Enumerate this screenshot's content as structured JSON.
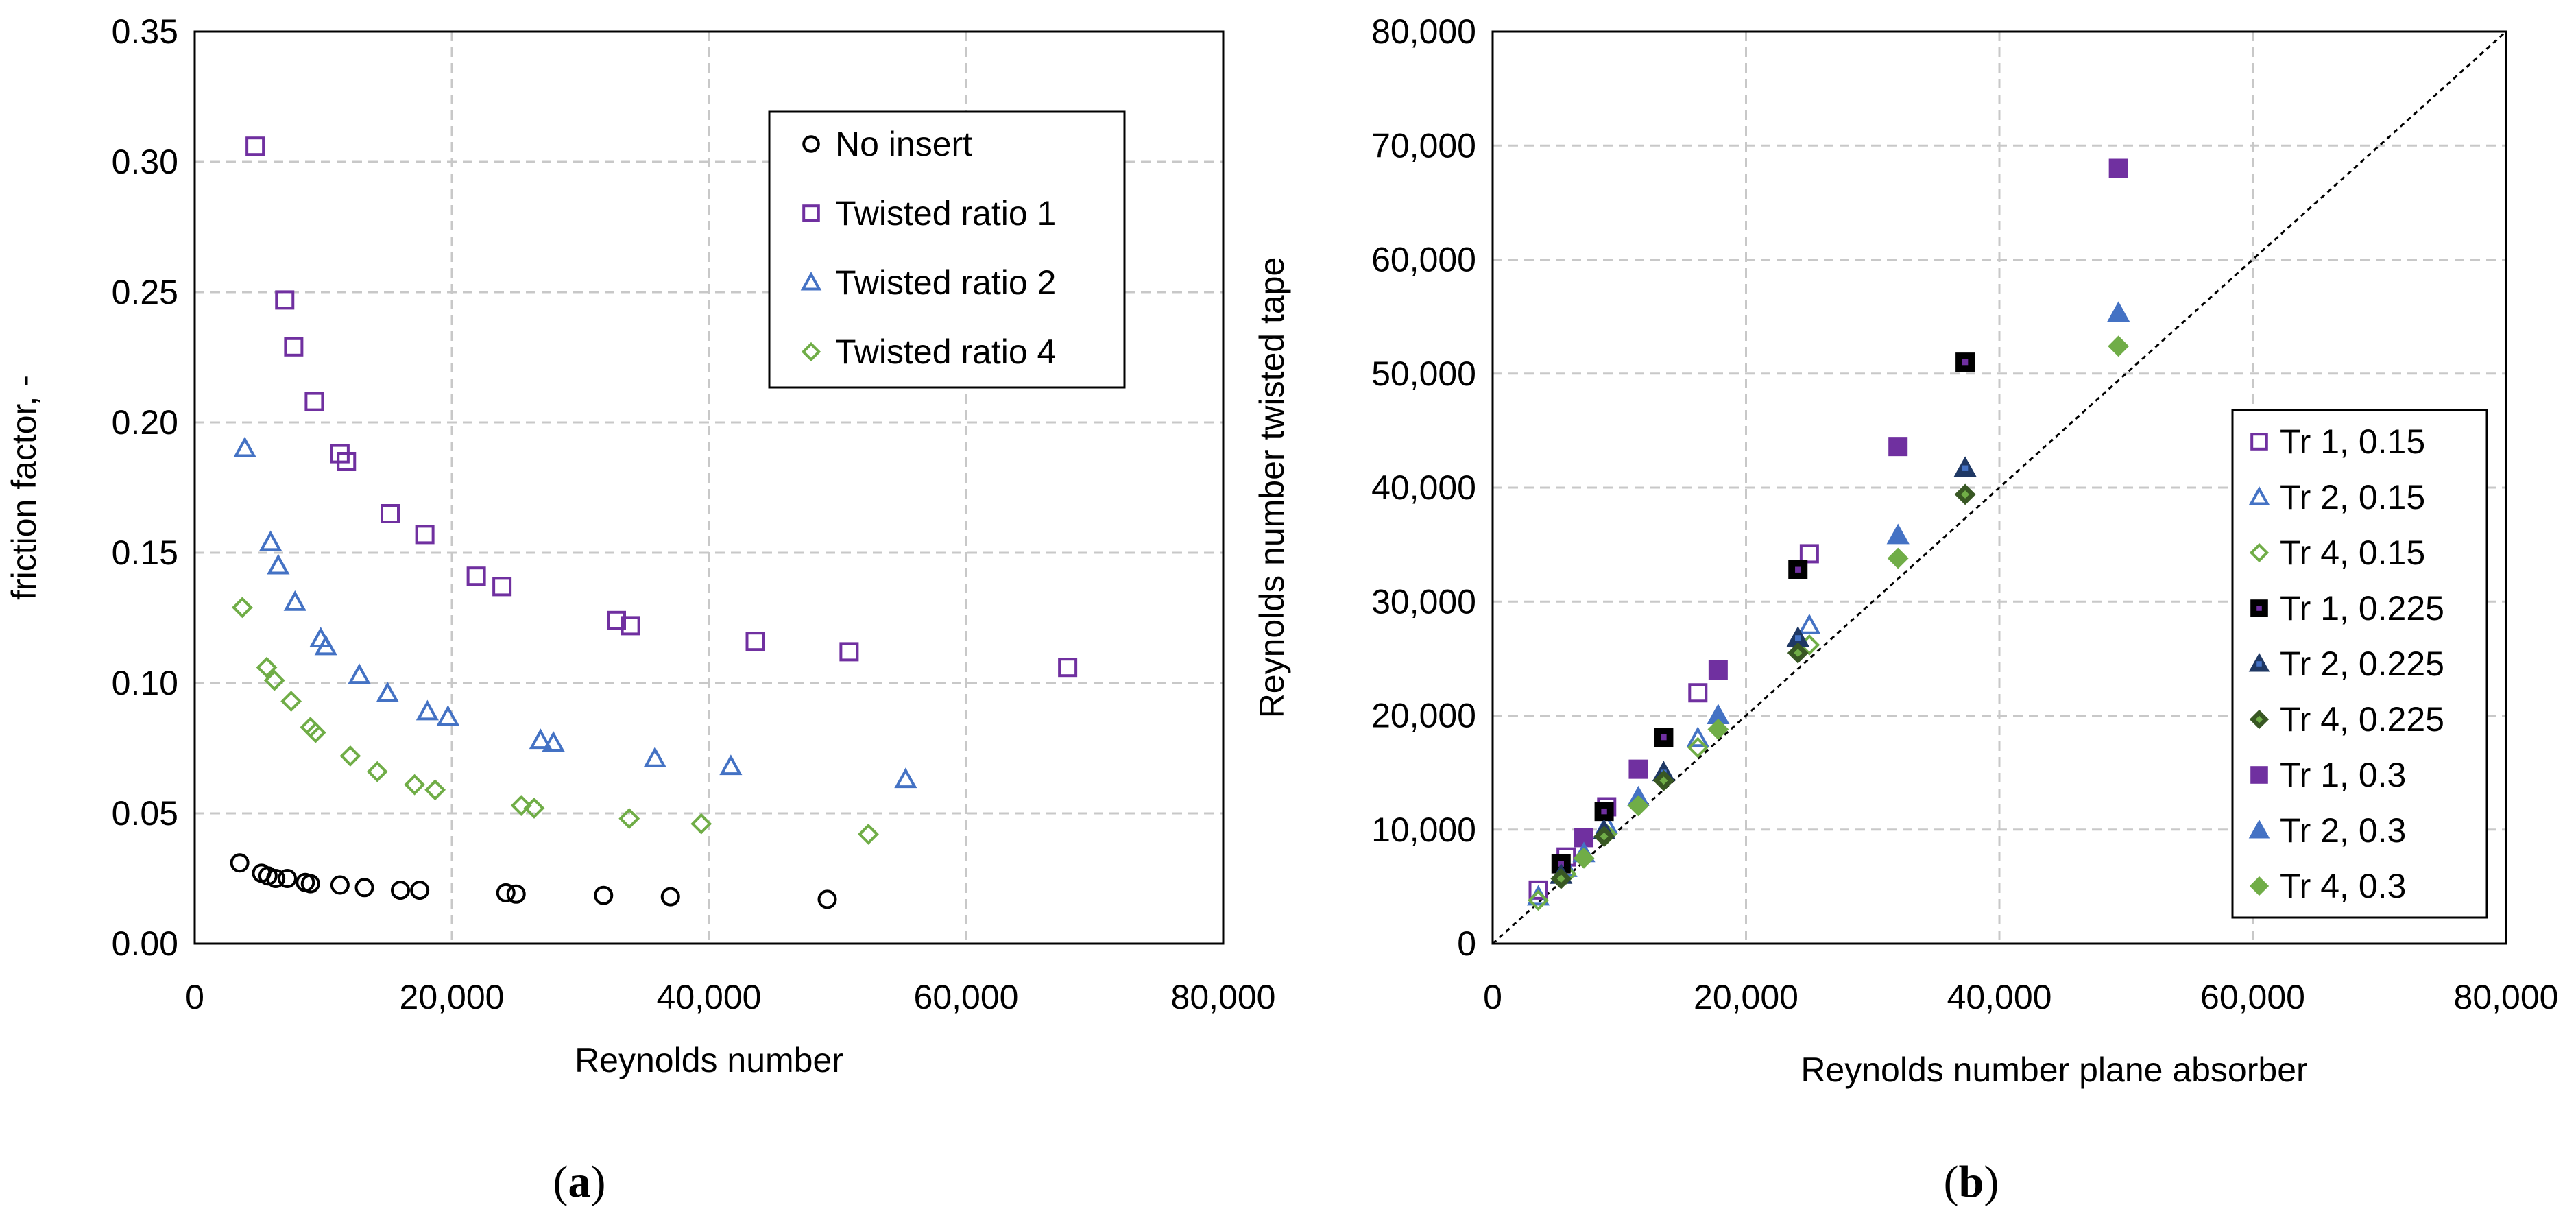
{
  "chart_data": [
    {
      "type": "scatter",
      "panel": "(a)",
      "xlabel": "Reynolds number",
      "ylabel": "friction factor, -",
      "xlim": [
        0,
        80000
      ],
      "ylim": [
        0,
        0.35
      ],
      "xticks": [
        0,
        20000,
        40000,
        60000,
        80000
      ],
      "xtick_labels": [
        "0",
        "20,000",
        "40,000",
        "60,000",
        "80,000"
      ],
      "yticks": [
        0,
        0.05,
        0.1,
        0.15,
        0.2,
        0.25,
        0.3,
        0.35
      ],
      "ytick_labels": [
        "0.00",
        "0.05",
        "0.10",
        "0.15",
        "0.20",
        "0.25",
        "0.30",
        "0.35"
      ],
      "grid": true,
      "legend_position": "top-right",
      "series": [
        {
          "name": "No insert",
          "marker": "circle",
          "color": "#000000",
          "fill": "none",
          "x": [
            3500,
            5200,
            5700,
            6300,
            7200,
            8600,
            9000,
            11300,
            13200,
            16000,
            17500,
            24200,
            25000,
            31800,
            37000,
            49200
          ],
          "y": [
            0.031,
            0.027,
            0.026,
            0.025,
            0.025,
            0.0235,
            0.023,
            0.0225,
            0.0215,
            0.0205,
            0.0205,
            0.0195,
            0.019,
            0.0185,
            0.018,
            0.017
          ]
        },
        {
          "name": "Twisted ratio 1",
          "marker": "square",
          "color": "#7030A0",
          "fill": "none",
          "x": [
            4700,
            7000,
            7700,
            9300,
            11300,
            11800,
            15200,
            17900,
            21900,
            23900,
            32800,
            33900,
            43600,
            50900,
            67900
          ],
          "y": [
            0.306,
            0.247,
            0.229,
            0.208,
            0.188,
            0.185,
            0.165,
            0.157,
            0.141,
            0.137,
            0.124,
            0.122,
            0.116,
            0.112,
            0.106
          ]
        },
        {
          "name": "Twisted ratio 2",
          "marker": "triangle",
          "color": "#4472C4",
          "fill": "none",
          "x": [
            3900,
            5900,
            6500,
            7800,
            9800,
            10200,
            12800,
            15000,
            18100,
            19700,
            26900,
            27900,
            35800,
            41700,
            55300
          ],
          "y": [
            0.19,
            0.154,
            0.145,
            0.131,
            0.117,
            0.114,
            0.103,
            0.096,
            0.089,
            0.087,
            0.078,
            0.077,
            0.071,
            0.068,
            0.063
          ]
        },
        {
          "name": "Twisted ratio 4",
          "marker": "diamond",
          "color": "#70AD47",
          "fill": "none",
          "x": [
            3700,
            5600,
            6200,
            7500,
            9000,
            9400,
            12100,
            14200,
            17100,
            18700,
            25400,
            26400,
            33800,
            39400,
            52400
          ],
          "y": [
            0.129,
            0.106,
            0.101,
            0.093,
            0.083,
            0.081,
            0.072,
            0.066,
            0.061,
            0.059,
            0.053,
            0.052,
            0.048,
            0.046,
            0.042
          ]
        }
      ]
    },
    {
      "type": "scatter",
      "panel": "(b)",
      "xlabel": "Reynolds number plane absorber",
      "ylabel": "Reynolds number twisted tape",
      "xlim": [
        0,
        80000
      ],
      "ylim": [
        0,
        80000
      ],
      "xticks": [
        0,
        20000,
        40000,
        60000,
        80000
      ],
      "xtick_labels": [
        "0",
        "20,000",
        "40,000",
        "60,000",
        "80,000"
      ],
      "yticks": [
        0,
        10000,
        20000,
        30000,
        40000,
        50000,
        60000,
        70000,
        80000
      ],
      "ytick_labels": [
        "0",
        "10,000",
        "20,000",
        "30,000",
        "40,000",
        "50,000",
        "60,000",
        "70,000",
        "80,000"
      ],
      "grid": true,
      "reference_line": "y = x",
      "legend_position": "right",
      "series": [
        {
          "name": "Tr 1, 0.15",
          "marker": "square",
          "color": "#7030A0",
          "fill": "none",
          "x": [
            3600,
            5800,
            9000,
            16200,
            25000
          ],
          "y": [
            4700,
            7600,
            12000,
            22000,
            34200
          ]
        },
        {
          "name": "Tr 2, 0.15",
          "marker": "triangle",
          "color": "#4472C4",
          "fill": "none",
          "x": [
            3600,
            5800,
            9000,
            16200,
            25000
          ],
          "y": [
            4100,
            6600,
            10400,
            18000,
            27900
          ]
        },
        {
          "name": "Tr 4, 0.15",
          "marker": "diamond",
          "color": "#70AD47",
          "fill": "none",
          "x": [
            3600,
            5800,
            9000,
            16200,
            25000
          ],
          "y": [
            3800,
            6100,
            9600,
            17200,
            26200
          ]
        },
        {
          "name": "Tr 1, 0.225",
          "marker": "square",
          "color": "#000000",
          "fill": "#000000",
          "inner": "#7030A0",
          "x": [
            5400,
            8800,
            13500,
            24100,
            37300
          ],
          "y": [
            7000,
            11600,
            18100,
            32800,
            51000
          ]
        },
        {
          "name": "Tr 2, 0.225",
          "marker": "triangle",
          "color": "#1F3864",
          "fill": "#1F3864",
          "inner": "#4472C4",
          "x": [
            5400,
            8800,
            13500,
            24100,
            37300
          ],
          "y": [
            6000,
            9900,
            15000,
            26800,
            41700
          ]
        },
        {
          "name": "Tr 4, 0.225",
          "marker": "diamond",
          "color": "#385723",
          "fill": "#385723",
          "inner": "#70AD47",
          "x": [
            5400,
            8800,
            13500,
            24100,
            37300
          ],
          "y": [
            5700,
            9400,
            14300,
            25500,
            39400
          ]
        },
        {
          "name": "Tr 1, 0.3",
          "marker": "square",
          "color": "#7030A0",
          "fill": "#7030A0",
          "x": [
            7200,
            11500,
            17800,
            32000,
            49400
          ],
          "y": [
            9300,
            15300,
            24000,
            43600,
            68000
          ]
        },
        {
          "name": "Tr 2, 0.3",
          "marker": "triangle",
          "color": "#4472C4",
          "fill": "#4472C4",
          "x": [
            7200,
            11500,
            17800,
            32000,
            49400
          ],
          "y": [
            7900,
            12800,
            20000,
            35800,
            55300
          ]
        },
        {
          "name": "Tr 4, 0.3",
          "marker": "diamond",
          "color": "#70AD47",
          "fill": "#70AD47",
          "x": [
            7200,
            11500,
            17800,
            32000,
            49400
          ],
          "y": [
            7500,
            12100,
            18800,
            33800,
            52400
          ]
        }
      ]
    }
  ],
  "captions": {
    "a": {
      "open": "(",
      "letter": "a",
      "close": ")"
    },
    "b": {
      "open": "(",
      "letter": "b",
      "close": ")"
    }
  }
}
